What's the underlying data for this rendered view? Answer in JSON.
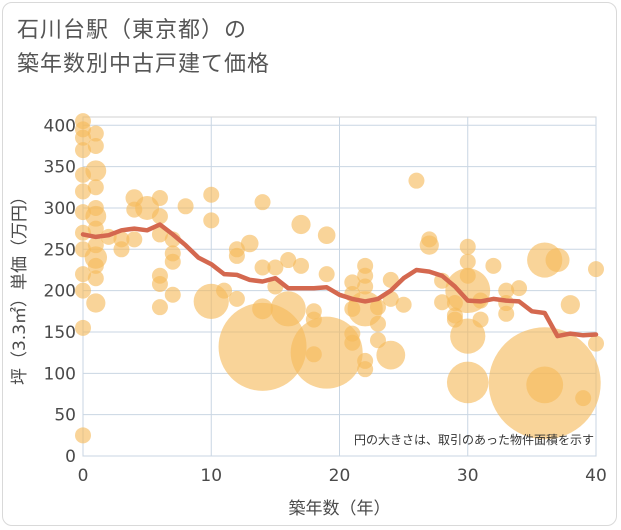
{
  "chart_data": {
    "type": "scatter",
    "title_lines": [
      "石川台駅（東京都）の",
      "築年数別中古戸建て価格"
    ],
    "xlabel": "築年数（年）",
    "ylabel": "坪（3.3㎡）単価（万円）",
    "xlim": [
      0,
      40
    ],
    "ylim": [
      0,
      410
    ],
    "xticks": [
      0,
      10,
      20,
      30,
      40
    ],
    "yticks": [
      0,
      50,
      100,
      150,
      200,
      250,
      300,
      350,
      400
    ],
    "grid": true,
    "note": "円の大きさは、取引のあった物件面積を示す",
    "colors": {
      "bubble": "#f5b95a",
      "line": "#d4684f",
      "grid": "#c9d6e3",
      "text": "#4a4a4a"
    },
    "bubbles": [
      {
        "x": 0,
        "y": 405,
        "s": 1
      },
      {
        "x": 0,
        "y": 395,
        "s": 1
      },
      {
        "x": 0,
        "y": 385,
        "s": 1
      },
      {
        "x": 0,
        "y": 370,
        "s": 1
      },
      {
        "x": 0,
        "y": 340,
        "s": 1
      },
      {
        "x": 0,
        "y": 320,
        "s": 1
      },
      {
        "x": 0,
        "y": 295,
        "s": 1
      },
      {
        "x": 0,
        "y": 270,
        "s": 1
      },
      {
        "x": 0,
        "y": 250,
        "s": 1
      },
      {
        "x": 0,
        "y": 220,
        "s": 1
      },
      {
        "x": 0,
        "y": 200,
        "s": 1
      },
      {
        "x": 0,
        "y": 155,
        "s": 1
      },
      {
        "x": 0,
        "y": 25,
        "s": 1
      },
      {
        "x": 1,
        "y": 390,
        "s": 1
      },
      {
        "x": 1,
        "y": 375,
        "s": 1
      },
      {
        "x": 1,
        "y": 345,
        "s": 1.3
      },
      {
        "x": 1,
        "y": 325,
        "s": 1
      },
      {
        "x": 1,
        "y": 300,
        "s": 1
      },
      {
        "x": 1,
        "y": 290,
        "s": 1.3
      },
      {
        "x": 1,
        "y": 275,
        "s": 1
      },
      {
        "x": 1,
        "y": 255,
        "s": 1
      },
      {
        "x": 1,
        "y": 240,
        "s": 1.4
      },
      {
        "x": 1,
        "y": 230,
        "s": 1
      },
      {
        "x": 1,
        "y": 215,
        "s": 1
      },
      {
        "x": 1,
        "y": 185,
        "s": 1.2
      },
      {
        "x": 2,
        "y": 265,
        "s": 1
      },
      {
        "x": 3,
        "y": 262,
        "s": 1
      },
      {
        "x": 3,
        "y": 250,
        "s": 1
      },
      {
        "x": 4,
        "y": 312,
        "s": 1.1
      },
      {
        "x": 4,
        "y": 298,
        "s": 1
      },
      {
        "x": 4,
        "y": 262,
        "s": 1
      },
      {
        "x": 5,
        "y": 300,
        "s": 1.5
      },
      {
        "x": 6,
        "y": 312,
        "s": 1
      },
      {
        "x": 6,
        "y": 290,
        "s": 1
      },
      {
        "x": 6,
        "y": 268,
        "s": 1
      },
      {
        "x": 6,
        "y": 218,
        "s": 1
      },
      {
        "x": 6,
        "y": 208,
        "s": 1
      },
      {
        "x": 6,
        "y": 180,
        "s": 1
      },
      {
        "x": 7,
        "y": 262,
        "s": 1
      },
      {
        "x": 7,
        "y": 245,
        "s": 1
      },
      {
        "x": 7,
        "y": 235,
        "s": 1
      },
      {
        "x": 7,
        "y": 195,
        "s": 1
      },
      {
        "x": 8,
        "y": 302,
        "s": 1
      },
      {
        "x": 10,
        "y": 316,
        "s": 1
      },
      {
        "x": 10,
        "y": 285,
        "s": 1
      },
      {
        "x": 10,
        "y": 187,
        "s": 2.2
      },
      {
        "x": 11,
        "y": 200,
        "s": 1
      },
      {
        "x": 12,
        "y": 250,
        "s": 1
      },
      {
        "x": 12,
        "y": 242,
        "s": 1
      },
      {
        "x": 12,
        "y": 190,
        "s": 1
      },
      {
        "x": 13,
        "y": 257,
        "s": 1.1
      },
      {
        "x": 14,
        "y": 307,
        "s": 1
      },
      {
        "x": 14,
        "y": 228,
        "s": 1
      },
      {
        "x": 14,
        "y": 178,
        "s": 1.3
      },
      {
        "x": 14,
        "y": 132,
        "s": 5.5
      },
      {
        "x": 15,
        "y": 228,
        "s": 1
      },
      {
        "x": 15,
        "y": 205,
        "s": 1
      },
      {
        "x": 16,
        "y": 237,
        "s": 1
      },
      {
        "x": 16,
        "y": 178,
        "s": 2.2
      },
      {
        "x": 17,
        "y": 280,
        "s": 1.2
      },
      {
        "x": 17,
        "y": 230,
        "s": 1
      },
      {
        "x": 18,
        "y": 175,
        "s": 1
      },
      {
        "x": 18,
        "y": 165,
        "s": 1
      },
      {
        "x": 18,
        "y": 123,
        "s": 1
      },
      {
        "x": 19,
        "y": 267,
        "s": 1.1
      },
      {
        "x": 19,
        "y": 220,
        "s": 1
      },
      {
        "x": 19,
        "y": 125,
        "s": 4.5
      },
      {
        "x": 21,
        "y": 210,
        "s": 1
      },
      {
        "x": 21,
        "y": 196,
        "s": 1
      },
      {
        "x": 21,
        "y": 178,
        "s": 1
      },
      {
        "x": 21,
        "y": 148,
        "s": 1
      },
      {
        "x": 21,
        "y": 137,
        "s": 1
      },
      {
        "x": 22,
        "y": 230,
        "s": 1
      },
      {
        "x": 22,
        "y": 218,
        "s": 1
      },
      {
        "x": 22,
        "y": 205,
        "s": 1
      },
      {
        "x": 22,
        "y": 178,
        "s": 2.2
      },
      {
        "x": 22,
        "y": 115,
        "s": 1
      },
      {
        "x": 22,
        "y": 105,
        "s": 1
      },
      {
        "x": 23,
        "y": 180,
        "s": 1
      },
      {
        "x": 23,
        "y": 160,
        "s": 1
      },
      {
        "x": 23,
        "y": 140,
        "s": 1
      },
      {
        "x": 24,
        "y": 213,
        "s": 1
      },
      {
        "x": 24,
        "y": 190,
        "s": 1
      },
      {
        "x": 24,
        "y": 122,
        "s": 1.8
      },
      {
        "x": 25,
        "y": 183,
        "s": 1
      },
      {
        "x": 26,
        "y": 333,
        "s": 1
      },
      {
        "x": 27,
        "y": 262,
        "s": 1
      },
      {
        "x": 27,
        "y": 255,
        "s": 1.2
      },
      {
        "x": 28,
        "y": 212,
        "s": 1
      },
      {
        "x": 28,
        "y": 186,
        "s": 1
      },
      {
        "x": 29,
        "y": 185,
        "s": 1
      },
      {
        "x": 29,
        "y": 170,
        "s": 1
      },
      {
        "x": 29,
        "y": 165,
        "s": 1
      },
      {
        "x": 30,
        "y": 253,
        "s": 1
      },
      {
        "x": 30,
        "y": 235,
        "s": 1
      },
      {
        "x": 30,
        "y": 218,
        "s": 1
      },
      {
        "x": 30,
        "y": 200,
        "s": 2.8
      },
      {
        "x": 30,
        "y": 145,
        "s": 2.2
      },
      {
        "x": 30,
        "y": 89,
        "s": 2.6
      },
      {
        "x": 31,
        "y": 188,
        "s": 1
      },
      {
        "x": 31,
        "y": 165,
        "s": 1
      },
      {
        "x": 32,
        "y": 230,
        "s": 1
      },
      {
        "x": 33,
        "y": 200,
        "s": 1
      },
      {
        "x": 33,
        "y": 185,
        "s": 1
      },
      {
        "x": 33,
        "y": 172,
        "s": 1
      },
      {
        "x": 34,
        "y": 203,
        "s": 1
      },
      {
        "x": 36,
        "y": 237,
        "s": 2.2
      },
      {
        "x": 36,
        "y": 88,
        "s": 7
      },
      {
        "x": 36,
        "y": 86,
        "s": 2.3
      },
      {
        "x": 37,
        "y": 237,
        "s": 1.5
      },
      {
        "x": 38,
        "y": 183,
        "s": 1.2
      },
      {
        "x": 39,
        "y": 70,
        "s": 1
      },
      {
        "x": 40,
        "y": 226,
        "s": 1
      },
      {
        "x": 40,
        "y": 136,
        "s": 1
      }
    ],
    "series": [
      {
        "x": [
          0,
          1,
          2,
          3,
          4,
          5,
          6,
          7,
          8,
          9,
          10,
          11,
          12,
          13,
          14,
          15,
          16,
          17,
          18,
          19,
          20,
          21,
          22,
          23,
          24,
          25,
          26,
          27,
          28,
          29,
          30,
          31,
          32,
          33,
          34,
          35,
          36,
          37,
          38,
          39,
          40
        ],
        "y": [
          268,
          265,
          267,
          273,
          275,
          273,
          280,
          268,
          255,
          240,
          232,
          220,
          219,
          213,
          211,
          215,
          203,
          203,
          203,
          204,
          195,
          190,
          187,
          190,
          200,
          215,
          225,
          223,
          218,
          205,
          188,
          187,
          190,
          188,
          187,
          175,
          173,
          145,
          148,
          146,
          147
        ]
      }
    ]
  }
}
